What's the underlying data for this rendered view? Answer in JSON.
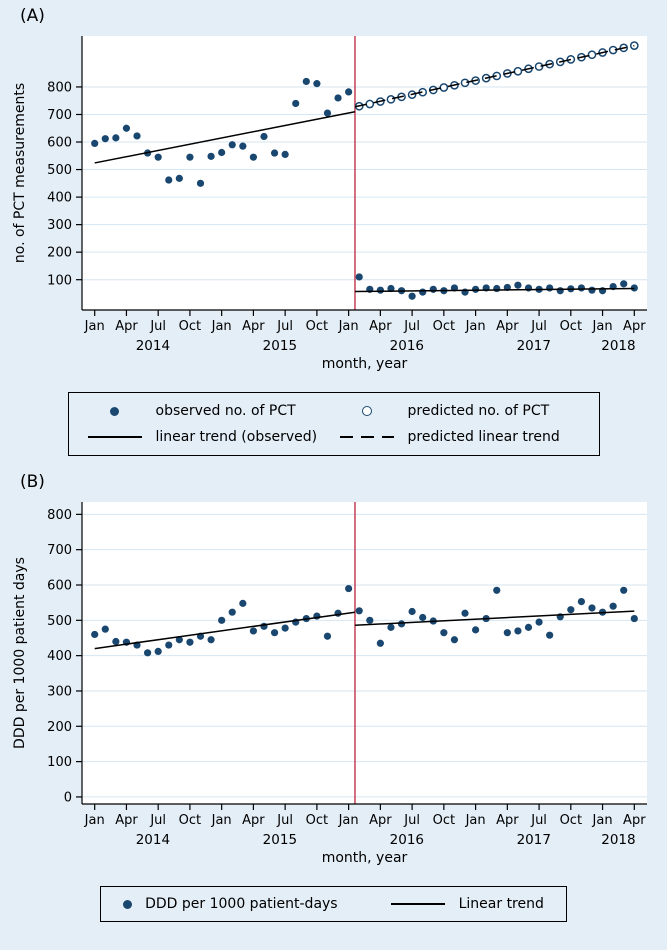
{
  "page": {
    "panel_a_label": "(A)",
    "panel_b_label": "(B)"
  },
  "colors": {
    "background": "#e4eef7",
    "plot_bg": "#ffffff",
    "grid": "#d6e6f2",
    "axis": "#000000",
    "navy": "#1A476F",
    "red": "#c0334d",
    "trend": "#000000"
  },
  "chart_data": [
    {
      "type": "scatter",
      "panel": "A",
      "ylabel": "no. of PCT measurements",
      "xlabel": "month, year",
      "ylim": [
        -10,
        985
      ],
      "yticks": [
        100,
        200,
        300,
        400,
        500,
        600,
        700,
        800
      ],
      "x_range": [
        -1.2,
        52.2
      ],
      "x_tick_positions": [
        0,
        3,
        6,
        9,
        12,
        15,
        18,
        21,
        24,
        27,
        30,
        33,
        36,
        39,
        42,
        45,
        48,
        51
      ],
      "x_tick_labels": [
        "Jan",
        "Apr",
        "Jul",
        "Oct",
        "Jan",
        "Apr",
        "Jul",
        "Oct",
        "Jan",
        "Apr",
        "Jul",
        "Oct",
        "Jan",
        "Apr",
        "Jul",
        "Oct",
        "Jan",
        "Apr"
      ],
      "year_labels": [
        {
          "x": 5.5,
          "label": "2014"
        },
        {
          "x": 17.5,
          "label": "2015"
        },
        {
          "x": 29.5,
          "label": "2016"
        },
        {
          "x": 41.5,
          "label": "2017"
        },
        {
          "x": 49.5,
          "label": "2018"
        }
      ],
      "grid": true,
      "legend_position": "bottom",
      "intervention_x": 24.6,
      "series": [
        {
          "name": "observed no. of PCT",
          "kind": "points",
          "marker": "filled",
          "x_start": 0,
          "values": [
            595,
            612,
            615,
            650,
            622,
            560,
            545,
            462,
            468,
            545,
            450,
            548,
            562,
            590,
            585,
            545,
            620,
            560,
            555,
            740,
            820,
            812,
            705,
            760,
            782,
            110,
            65,
            62,
            68,
            60,
            40,
            55,
            65,
            60,
            70,
            55,
            65,
            70,
            68,
            72,
            80,
            70,
            65,
            70,
            60,
            67,
            70,
            62,
            60,
            75,
            85,
            70
          ]
        },
        {
          "name": "predicted no. of PCT",
          "kind": "points",
          "marker": "open",
          "x_start": 25,
          "values": [
            730,
            738,
            747,
            755,
            764,
            772,
            781,
            789,
            798,
            806,
            815,
            823,
            832,
            840,
            849,
            857,
            866,
            874,
            883,
            891,
            900,
            908,
            917,
            925,
            934,
            942,
            950
          ]
        },
        {
          "name": "linear trend (observed)",
          "kind": "line",
          "style": "solid",
          "segments": [
            [
              [
                0,
                524
              ],
              [
                24.6,
                710
              ]
            ],
            [
              [
                24.6,
                57
              ],
              [
                51,
                68
              ]
            ]
          ]
        },
        {
          "name": "predicted linear trend",
          "kind": "line",
          "style": "dashed",
          "segments": [
            [
              [
                24.6,
                728
              ],
              [
                51,
                950
              ]
            ]
          ]
        }
      ]
    },
    {
      "type": "scatter",
      "panel": "B",
      "ylabel": "DDD per 1000 patient days",
      "xlabel": "month, year",
      "ylim": [
        -20,
        835
      ],
      "yticks": [
        0,
        100,
        200,
        300,
        400,
        500,
        600,
        700,
        800
      ],
      "x_range": [
        -1.2,
        52.2
      ],
      "x_tick_positions": [
        0,
        3,
        6,
        9,
        12,
        15,
        18,
        21,
        24,
        27,
        30,
        33,
        36,
        39,
        42,
        45,
        48,
        51
      ],
      "x_tick_labels": [
        "Jan",
        "Apr",
        "Jul",
        "Oct",
        "Jan",
        "Apr",
        "Jul",
        "Oct",
        "Jan",
        "Apr",
        "Jul",
        "Oct",
        "Jan",
        "Apr",
        "Jul",
        "Oct",
        "Jan",
        "Apr"
      ],
      "year_labels": [
        {
          "x": 5.5,
          "label": "2014"
        },
        {
          "x": 17.5,
          "label": "2015"
        },
        {
          "x": 29.5,
          "label": "2016"
        },
        {
          "x": 41.5,
          "label": "2017"
        },
        {
          "x": 49.5,
          "label": "2018"
        }
      ],
      "grid": true,
      "legend_position": "bottom",
      "intervention_x": 24.6,
      "series": [
        {
          "name": "DDD per 1000 patient-days",
          "kind": "points",
          "marker": "filled",
          "x_start": 0,
          "values": [
            460,
            475,
            440,
            438,
            430,
            408,
            412,
            430,
            445,
            438,
            455,
            445,
            500,
            523,
            548,
            470,
            483,
            465,
            478,
            495,
            505,
            512,
            455,
            520,
            590,
            527,
            500,
            435,
            480,
            490,
            525,
            508,
            498,
            465,
            445,
            520,
            473,
            505,
            585,
            465,
            470,
            480,
            495,
            458,
            510,
            530,
            553,
            535,
            523,
            540,
            585,
            505
          ]
        },
        {
          "name": "Linear trend",
          "kind": "line",
          "style": "solid",
          "segments": [
            [
              [
                0,
                420
              ],
              [
                24.6,
                523
              ]
            ],
            [
              [
                24.6,
                486
              ],
              [
                51,
                526
              ]
            ]
          ]
        }
      ]
    }
  ],
  "legend_a": {
    "items": [
      {
        "marker": "filled-dot",
        "label": "observed no. of PCT"
      },
      {
        "marker": "open-dot",
        "label": "predicted no. of PCT"
      },
      {
        "marker": "solid-line",
        "label": "linear trend (observed)"
      },
      {
        "marker": "dashed-line",
        "label": "predicted linear trend"
      }
    ]
  },
  "legend_b": {
    "items": [
      {
        "marker": "filled-dot",
        "label": "DDD per 1000 patient-days"
      },
      {
        "marker": "solid-line",
        "label": "Linear trend"
      }
    ]
  }
}
